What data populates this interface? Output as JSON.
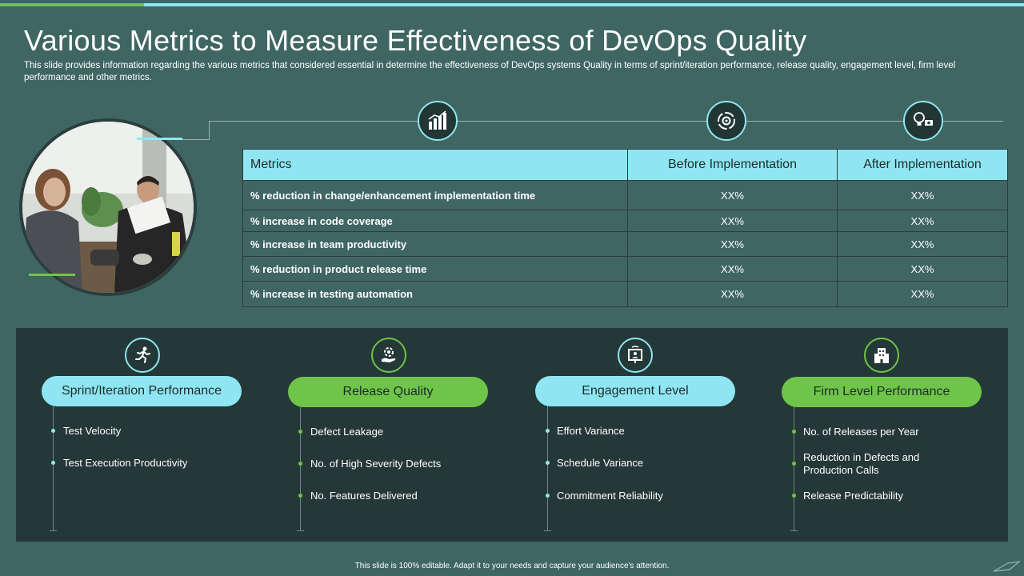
{
  "slide": {
    "title": "Various Metrics to Measure Effectiveness of DevOps Quality",
    "subtitle": "This slide provides information regarding the various metrics that considered essential in determine the effectiveness of DevOps  systems Quality in terms of sprint/iteration performance, release quality, engagement level, firm level performance and other metrics.",
    "footer": "This slide is 100% editable.  Adapt it to your needs and capture your audience's attention."
  },
  "colors": {
    "background": "#3f6663",
    "accent_cyan": "#8fe6f2",
    "accent_green": "#6fc44a",
    "panel_dark": "#243837"
  },
  "top_icons": [
    "chart-bars-icon",
    "gear-cycle-icon",
    "lightbulb-money-icon"
  ],
  "table": {
    "headers": [
      "Metrics",
      "Before Implementation",
      "After Implementation"
    ],
    "rows": [
      {
        "metric": "% reduction in change/enhancement implementation time",
        "before": "XX%",
        "after": "XX%"
      },
      {
        "metric": "% increase in code coverage",
        "before": "XX%",
        "after": "XX%"
      },
      {
        "metric": "% increase in team productivity",
        "before": "XX%",
        "after": "XX%"
      },
      {
        "metric": "% reduction in product release time",
        "before": "XX%",
        "after": "XX%"
      },
      {
        "metric": "% increase in testing  automation",
        "before": "XX%",
        "after": "XX%"
      }
    ]
  },
  "categories": [
    {
      "label": "Sprint/Iteration Performance",
      "icon": "running-person-icon",
      "accent": "cyan",
      "items": [
        "Test Velocity",
        "Test Execution Productivity"
      ]
    },
    {
      "label": "Release Quality",
      "icon": "hand-gear-icon",
      "accent": "green",
      "items": [
        "Defect Leakage",
        "No. of High Severity Defects",
        "No. Features Delivered"
      ]
    },
    {
      "label": "Engagement Level",
      "icon": "meeting-board-icon",
      "accent": "cyan",
      "items": [
        "Effort Variance",
        "Schedule Variance",
        "Commitment Reliability"
      ]
    },
    {
      "label": "Firm Level Performance",
      "icon": "office-building-icon",
      "accent": "green",
      "items": [
        "No. of Releases per Year",
        "Reduction in Defects and Production Calls",
        "Release Predictability"
      ]
    }
  ]
}
